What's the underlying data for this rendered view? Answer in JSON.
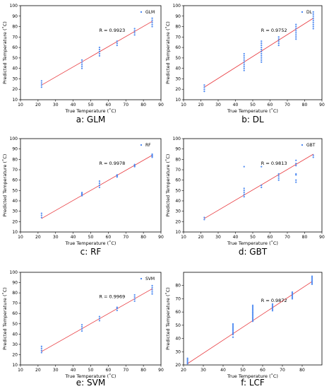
{
  "figure": {
    "panel_grid": "3 rows x 2 columns"
  },
  "chart_data": [
    {
      "type": "scatter",
      "panel": "a",
      "caption": "a: GLM",
      "legend": "GLM",
      "annotation": "R = 0.9923",
      "xlabel": "True Temperature (˚C)",
      "ylabel": "Predicted Temperature (˚C)",
      "xlim": [
        10,
        90
      ],
      "ylim": [
        10,
        100
      ],
      "xticks": [
        "10",
        "20",
        "30",
        "40",
        "50",
        "60",
        "70",
        "80",
        "90"
      ],
      "yticks": [
        "10",
        "20",
        "30",
        "40",
        "50",
        "60",
        "70",
        "80",
        "90",
        "100"
      ],
      "fit_line": {
        "x": [
          22,
          85
        ],
        "y": [
          24,
          85
        ]
      },
      "points": [
        {
          "x": 22,
          "y": 22
        },
        {
          "x": 22,
          "y": 24
        },
        {
          "x": 22,
          "y": 26
        },
        {
          "x": 22,
          "y": 28
        },
        {
          "x": 45,
          "y": 40
        },
        {
          "x": 45,
          "y": 42
        },
        {
          "x": 45,
          "y": 44
        },
        {
          "x": 45,
          "y": 46
        },
        {
          "x": 45,
          "y": 48
        },
        {
          "x": 55,
          "y": 52
        },
        {
          "x": 55,
          "y": 54
        },
        {
          "x": 55,
          "y": 56
        },
        {
          "x": 55,
          "y": 58
        },
        {
          "x": 55,
          "y": 60
        },
        {
          "x": 65,
          "y": 62
        },
        {
          "x": 65,
          "y": 64
        },
        {
          "x": 65,
          "y": 66
        },
        {
          "x": 75,
          "y": 72
        },
        {
          "x": 75,
          "y": 74
        },
        {
          "x": 75,
          "y": 76
        },
        {
          "x": 75,
          "y": 78
        },
        {
          "x": 85,
          "y": 80
        },
        {
          "x": 85,
          "y": 82
        },
        {
          "x": 85,
          "y": 84
        },
        {
          "x": 85,
          "y": 86
        },
        {
          "x": 85,
          "y": 88
        }
      ]
    },
    {
      "type": "scatter",
      "panel": "b",
      "caption": "b: DL",
      "legend": "DL",
      "annotation": "R = 0.9752",
      "xlabel": "True Temperature (˚C)",
      "ylabel": "Predicted Temperature (˚C)",
      "xlim": [
        10,
        90
      ],
      "ylim": [
        10,
        100
      ],
      "xticks": [
        "10",
        "20",
        "30",
        "40",
        "50",
        "60",
        "70",
        "80",
        "90"
      ],
      "yticks": [
        "10",
        "20",
        "30",
        "40",
        "50",
        "60",
        "70",
        "80",
        "90",
        "100"
      ],
      "fit_line": {
        "x": [
          22,
          85
        ],
        "y": [
          22,
          88
        ]
      },
      "points": [
        {
          "x": 22,
          "y": 18
        },
        {
          "x": 22,
          "y": 20
        },
        {
          "x": 22,
          "y": 22
        },
        {
          "x": 22,
          "y": 24
        },
        {
          "x": 45,
          "y": 38
        },
        {
          "x": 45,
          "y": 40
        },
        {
          "x": 45,
          "y": 42
        },
        {
          "x": 45,
          "y": 44
        },
        {
          "x": 45,
          "y": 46
        },
        {
          "x": 45,
          "y": 48
        },
        {
          "x": 45,
          "y": 50
        },
        {
          "x": 45,
          "y": 52
        },
        {
          "x": 45,
          "y": 54
        },
        {
          "x": 55,
          "y": 46
        },
        {
          "x": 55,
          "y": 48
        },
        {
          "x": 55,
          "y": 50
        },
        {
          "x": 55,
          "y": 52
        },
        {
          "x": 55,
          "y": 54
        },
        {
          "x": 55,
          "y": 56
        },
        {
          "x": 55,
          "y": 58
        },
        {
          "x": 55,
          "y": 60
        },
        {
          "x": 55,
          "y": 62
        },
        {
          "x": 55,
          "y": 64
        },
        {
          "x": 55,
          "y": 66
        },
        {
          "x": 65,
          "y": 62
        },
        {
          "x": 65,
          "y": 64
        },
        {
          "x": 65,
          "y": 66
        },
        {
          "x": 65,
          "y": 68
        },
        {
          "x": 65,
          "y": 70
        },
        {
          "x": 75,
          "y": 68
        },
        {
          "x": 75,
          "y": 70
        },
        {
          "x": 75,
          "y": 72
        },
        {
          "x": 75,
          "y": 74
        },
        {
          "x": 75,
          "y": 76
        },
        {
          "x": 75,
          "y": 78
        },
        {
          "x": 75,
          "y": 80
        },
        {
          "x": 75,
          "y": 82
        },
        {
          "x": 85,
          "y": 78
        },
        {
          "x": 85,
          "y": 80
        },
        {
          "x": 85,
          "y": 82
        },
        {
          "x": 85,
          "y": 84
        },
        {
          "x": 85,
          "y": 86
        },
        {
          "x": 85,
          "y": 88
        },
        {
          "x": 85,
          "y": 90
        },
        {
          "x": 85,
          "y": 92
        },
        {
          "x": 85,
          "y": 94
        }
      ]
    },
    {
      "type": "scatter",
      "panel": "c",
      "caption": "c: RF",
      "legend": "RF",
      "annotation": "R = 0.9978",
      "xlabel": "True Temperature (˚C)",
      "ylabel": "Predicted Temperature (˚C)",
      "xlim": [
        10,
        90
      ],
      "ylim": [
        10,
        100
      ],
      "xticks": [
        "10",
        "20",
        "30",
        "40",
        "50",
        "60",
        "70",
        "80",
        "90"
      ],
      "yticks": [
        "10",
        "20",
        "30",
        "40",
        "50",
        "60",
        "70",
        "80",
        "90",
        "100"
      ],
      "fit_line": {
        "x": [
          22,
          85
        ],
        "y": [
          23,
          84
        ]
      },
      "points": [
        {
          "x": 22,
          "y": 24
        },
        {
          "x": 22,
          "y": 26
        },
        {
          "x": 22,
          "y": 28
        },
        {
          "x": 45,
          "y": 45
        },
        {
          "x": 45,
          "y": 46
        },
        {
          "x": 45,
          "y": 47
        },
        {
          "x": 45,
          "y": 48
        },
        {
          "x": 55,
          "y": 53
        },
        {
          "x": 55,
          "y": 55
        },
        {
          "x": 55,
          "y": 57
        },
        {
          "x": 55,
          "y": 59
        },
        {
          "x": 65,
          "y": 63
        },
        {
          "x": 65,
          "y": 64
        },
        {
          "x": 65,
          "y": 65
        },
        {
          "x": 75,
          "y": 73
        },
        {
          "x": 75,
          "y": 74
        },
        {
          "x": 75,
          "y": 75
        },
        {
          "x": 85,
          "y": 82
        },
        {
          "x": 85,
          "y": 83
        },
        {
          "x": 85,
          "y": 84
        },
        {
          "x": 85,
          "y": 85
        }
      ]
    },
    {
      "type": "scatter",
      "panel": "d",
      "caption": "d: GBT",
      "legend": "GBT",
      "annotation": "R = 0.9813",
      "xlabel": "True Temperature (˚C)",
      "ylabel": "Predicted Temperature (˚C)",
      "xlim": [
        10,
        90
      ],
      "ylim": [
        10,
        100
      ],
      "xticks": [
        "10",
        "20",
        "30",
        "40",
        "50",
        "60",
        "70",
        "80",
        "90"
      ],
      "yticks": [
        "10",
        "20",
        "30",
        "40",
        "50",
        "60",
        "70",
        "80",
        "90",
        "100"
      ],
      "fit_line": {
        "x": [
          22,
          85
        ],
        "y": [
          23,
          85
        ]
      },
      "points": [
        {
          "x": 22,
          "y": 22
        },
        {
          "x": 22,
          "y": 24
        },
        {
          "x": 45,
          "y": 44
        },
        {
          "x": 45,
          "y": 46
        },
        {
          "x": 45,
          "y": 48
        },
        {
          "x": 45,
          "y": 50
        },
        {
          "x": 45,
          "y": 52
        },
        {
          "x": 45,
          "y": 73
        },
        {
          "x": 55,
          "y": 53
        },
        {
          "x": 55,
          "y": 55
        },
        {
          "x": 55,
          "y": 73
        },
        {
          "x": 65,
          "y": 60
        },
        {
          "x": 65,
          "y": 62
        },
        {
          "x": 65,
          "y": 64
        },
        {
          "x": 65,
          "y": 66
        },
        {
          "x": 75,
          "y": 58
        },
        {
          "x": 75,
          "y": 60
        },
        {
          "x": 75,
          "y": 65
        },
        {
          "x": 75,
          "y": 66
        },
        {
          "x": 75,
          "y": 74
        },
        {
          "x": 75,
          "y": 76
        },
        {
          "x": 75,
          "y": 79
        },
        {
          "x": 85,
          "y": 82
        },
        {
          "x": 85,
          "y": 84
        }
      ]
    },
    {
      "type": "scatter",
      "panel": "e",
      "caption": "e: SVM",
      "legend": "SVM",
      "annotation": "R = 0.9969",
      "xlabel": "True Temperature (˚C)",
      "ylabel": "Predicted Temperature (˚C)",
      "xlim": [
        10,
        90
      ],
      "ylim": [
        10,
        100
      ],
      "xticks": [
        "10",
        "20",
        "30",
        "40",
        "50",
        "60",
        "70",
        "80",
        "90"
      ],
      "yticks": [
        "10",
        "20",
        "30",
        "40",
        "50",
        "60",
        "70",
        "80",
        "90",
        "100"
      ],
      "fit_line": {
        "x": [
          22,
          85
        ],
        "y": [
          23,
          84
        ]
      },
      "points": [
        {
          "x": 22,
          "y": 22
        },
        {
          "x": 22,
          "y": 24
        },
        {
          "x": 22,
          "y": 26
        },
        {
          "x": 22,
          "y": 28
        },
        {
          "x": 45,
          "y": 43
        },
        {
          "x": 45,
          "y": 45
        },
        {
          "x": 45,
          "y": 47
        },
        {
          "x": 45,
          "y": 49
        },
        {
          "x": 55,
          "y": 53
        },
        {
          "x": 55,
          "y": 55
        },
        {
          "x": 55,
          "y": 57
        },
        {
          "x": 65,
          "y": 63
        },
        {
          "x": 65,
          "y": 65
        },
        {
          "x": 65,
          "y": 66
        },
        {
          "x": 75,
          "y": 72
        },
        {
          "x": 75,
          "y": 74
        },
        {
          "x": 75,
          "y": 76
        },
        {
          "x": 75,
          "y": 78
        },
        {
          "x": 85,
          "y": 79
        },
        {
          "x": 85,
          "y": 81
        },
        {
          "x": 85,
          "y": 83
        },
        {
          "x": 85,
          "y": 85
        },
        {
          "x": 85,
          "y": 87
        }
      ]
    },
    {
      "type": "scatter",
      "panel": "f",
      "caption": "f: LCF",
      "legend": "",
      "annotation": "R = 0.9872",
      "xlabel": "True Temperature (˚C)",
      "ylabel": "Predicted Temperature (˚C)",
      "xlim": [
        20,
        90
      ],
      "ylim": [
        20,
        90
      ],
      "xticks": [
        "20",
        "30",
        "40",
        "50",
        "60",
        "70",
        "80"
      ],
      "yticks": [
        "20",
        "30",
        "40",
        "50",
        "60",
        "70",
        "80"
      ],
      "fit_line": {
        "x": [
          22,
          85
        ],
        "y": [
          21,
          83
        ]
      },
      "points": [
        {
          "x": 22,
          "y": 21
        },
        {
          "x": 22,
          "y": 22
        },
        {
          "x": 22,
          "y": 23
        },
        {
          "x": 22,
          "y": 24
        },
        {
          "x": 22,
          "y": 25
        },
        {
          "x": 45,
          "y": 41
        },
        {
          "x": 45,
          "y": 43
        },
        {
          "x": 45,
          "y": 44
        },
        {
          "x": 45,
          "y": 45
        },
        {
          "x": 45,
          "y": 46
        },
        {
          "x": 45,
          "y": 47
        },
        {
          "x": 45,
          "y": 48
        },
        {
          "x": 45,
          "y": 49
        },
        {
          "x": 45,
          "y": 50
        },
        {
          "x": 45,
          "y": 51
        },
        {
          "x": 55,
          "y": 53
        },
        {
          "x": 55,
          "y": 54
        },
        {
          "x": 55,
          "y": 55
        },
        {
          "x": 55,
          "y": 56
        },
        {
          "x": 55,
          "y": 57
        },
        {
          "x": 55,
          "y": 58
        },
        {
          "x": 55,
          "y": 59
        },
        {
          "x": 55,
          "y": 60
        },
        {
          "x": 55,
          "y": 61
        },
        {
          "x": 55,
          "y": 62
        },
        {
          "x": 55,
          "y": 63
        },
        {
          "x": 55,
          "y": 64
        },
        {
          "x": 55,
          "y": 65
        },
        {
          "x": 65,
          "y": 61
        },
        {
          "x": 65,
          "y": 62
        },
        {
          "x": 65,
          "y": 63
        },
        {
          "x": 65,
          "y": 64
        },
        {
          "x": 65,
          "y": 65
        },
        {
          "x": 65,
          "y": 66
        },
        {
          "x": 75,
          "y": 70
        },
        {
          "x": 75,
          "y": 71
        },
        {
          "x": 75,
          "y": 72
        },
        {
          "x": 75,
          "y": 73
        },
        {
          "x": 75,
          "y": 74
        },
        {
          "x": 75,
          "y": 75
        },
        {
          "x": 85,
          "y": 81
        },
        {
          "x": 85,
          "y": 82
        },
        {
          "x": 85,
          "y": 83
        },
        {
          "x": 85,
          "y": 84
        },
        {
          "x": 85,
          "y": 85
        },
        {
          "x": 85,
          "y": 86
        },
        {
          "x": 85,
          "y": 87
        }
      ]
    }
  ]
}
